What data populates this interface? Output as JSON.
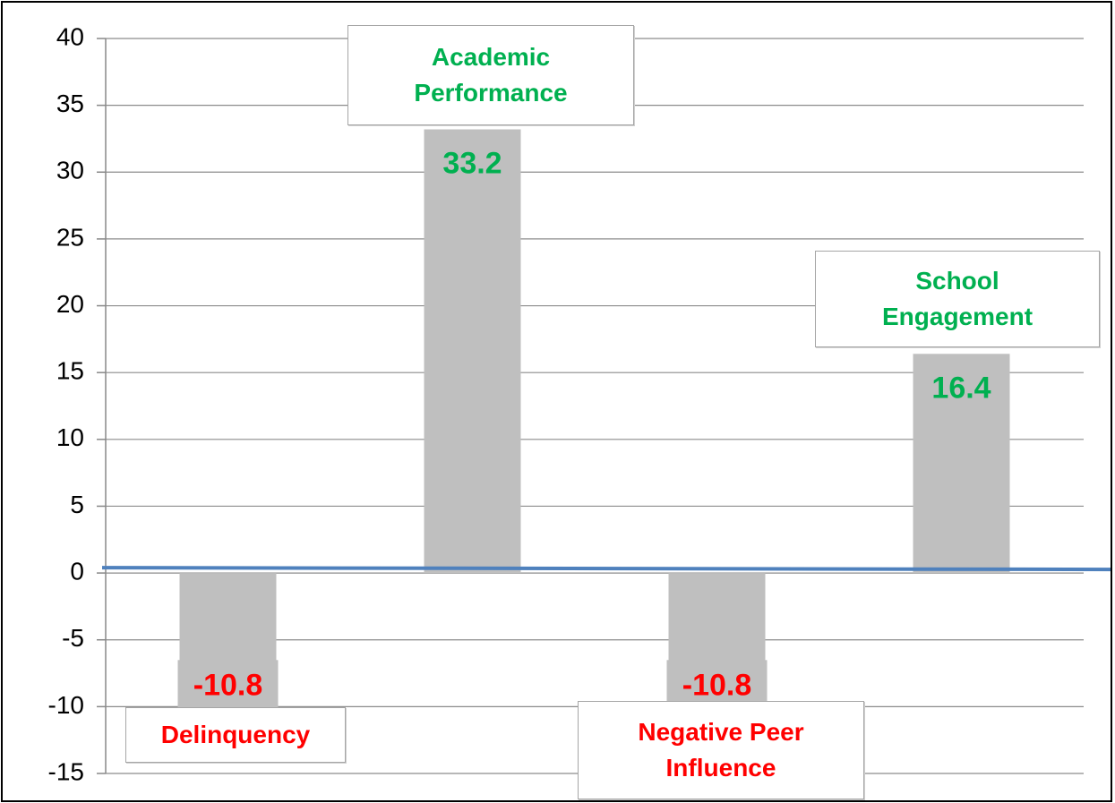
{
  "chart_data": {
    "type": "bar",
    "categories": [
      "Delinquency",
      "Academic Performance",
      "Negative Peer Influence",
      "School Engagement"
    ],
    "values": [
      -10.8,
      33.2,
      -10.8,
      16.4
    ],
    "color": "#bfbfbf",
    "positive_label_color": "#00b050",
    "negative_label_color": "#ff0000",
    "zero_line_color": "#4f81bd",
    "ylim": [
      -15,
      40
    ],
    "yticks": [
      -15,
      -10,
      -5,
      0,
      5,
      10,
      15,
      20,
      25,
      30,
      35,
      40
    ],
    "grid": true
  }
}
